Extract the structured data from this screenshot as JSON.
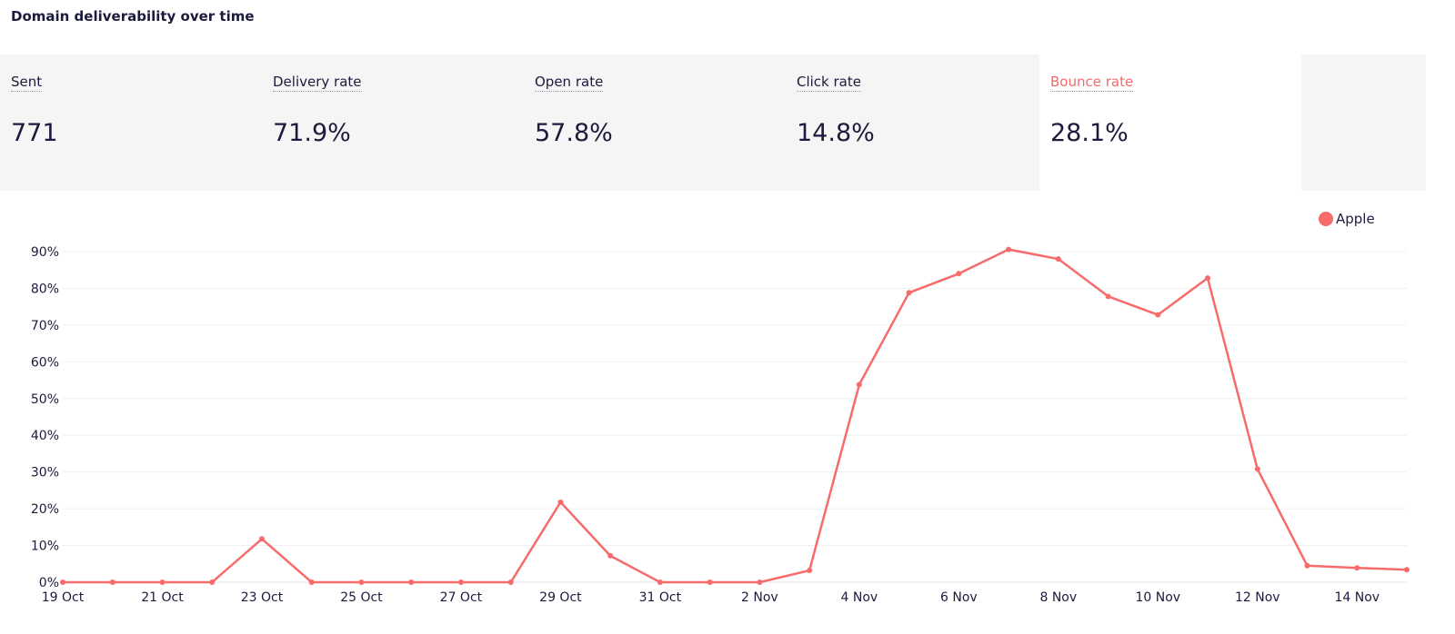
{
  "header": {
    "title": "Domain deliverability over time"
  },
  "stats": [
    {
      "label": "Sent",
      "value": "771"
    },
    {
      "label": "Delivery rate",
      "value": "71.9%"
    },
    {
      "label": "Open rate",
      "value": "57.8%"
    },
    {
      "label": "Click rate",
      "value": "14.8%"
    },
    {
      "label": "Bounce rate",
      "value": "28.1%"
    }
  ],
  "active_stat": "Bounce rate",
  "colors": {
    "series": "#f76b6b",
    "active_label": "#f26b6b",
    "text": "#1c1b3d",
    "stats_background": "#f5f5f6"
  },
  "legend": {
    "label": "Apple"
  },
  "chart_data": {
    "type": "line",
    "title": "",
    "xlabel": "",
    "ylabel": "",
    "ylim": [
      0,
      90
    ],
    "y_ticks": [
      "0%",
      "10%",
      "20%",
      "30%",
      "40%",
      "50%",
      "60%",
      "70%",
      "80%",
      "90%"
    ],
    "x": [
      "19 Oct",
      "20 Oct",
      "21 Oct",
      "22 Oct",
      "23 Oct",
      "24 Oct",
      "25 Oct",
      "26 Oct",
      "27 Oct",
      "28 Oct",
      "29 Oct",
      "30 Oct",
      "31 Oct",
      "1 Nov",
      "2 Nov",
      "3 Nov",
      "4 Nov",
      "5 Nov",
      "6 Nov",
      "7 Nov",
      "8 Nov",
      "9 Nov",
      "10 Nov",
      "11 Nov",
      "12 Nov",
      "13 Nov",
      "14 Nov",
      "15 Nov"
    ],
    "x_tick_labels": [
      "19 Oct",
      "21 Oct",
      "23 Oct",
      "25 Oct",
      "27 Oct",
      "29 Oct",
      "31 Oct",
      "2 Nov",
      "4 Nov",
      "6 Nov",
      "8 Nov",
      "10 Nov",
      "12 Nov",
      "14 Nov"
    ],
    "series": [
      {
        "name": "Apple",
        "values": [
          0,
          0,
          0,
          0,
          11.8,
          0,
          0,
          0,
          0,
          0,
          21.8,
          7.2,
          0,
          0,
          0,
          3.2,
          53.8,
          78.8,
          84.0,
          90.6,
          88.0,
          77.8,
          72.8,
          82.8,
          30.8,
          4.5,
          3.9,
          3.4
        ]
      }
    ],
    "grid": true,
    "legend_position": "top-right"
  }
}
